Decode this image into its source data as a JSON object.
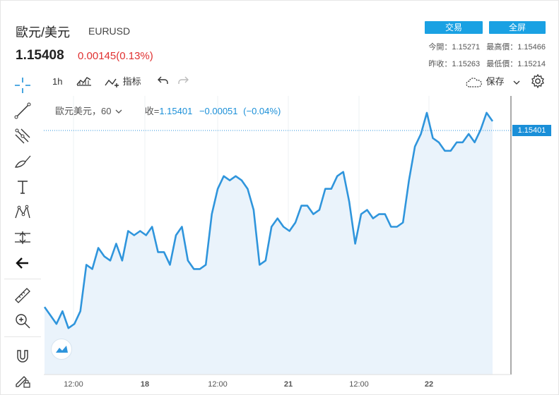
{
  "header": {
    "symbol_name": "歐元/美元",
    "symbol_code": "EURUSD",
    "price": "1.15408",
    "change": "0.00145(0.13%)",
    "trade_button": "交易",
    "fullscreen_button": "全屏",
    "stats": {
      "today_open_label": "今開：",
      "today_open": "1.15271",
      "high_label": "最高價：",
      "high": "1.15466",
      "prev_close_label": "昨收：",
      "prev_close": "1.15263",
      "low_label": "最低價：",
      "low": "1.15214"
    }
  },
  "toolbar": {
    "interval": "1h",
    "indicator_label": "指标",
    "save_label": "保存"
  },
  "legend": {
    "series": "歐元美元，60",
    "close_label": "收=",
    "close_value": "1.15401",
    "close_change": "−0.00051",
    "close_change_pct": "(−0.04%)"
  },
  "colors": {
    "line": "#2f95dc",
    "area": "#eaf3fb",
    "accent": "#1aa1e3",
    "negative": "#e03131"
  },
  "chart_data": {
    "type": "area",
    "x_ticks": [
      "12:00",
      "18",
      "12:00",
      "21",
      "12:00",
      "22"
    ],
    "y_last_label": "1.15401",
    "y": [
      1.1496,
      1.1494,
      1.1492,
      1.1495,
      1.1491,
      1.1492,
      1.1495,
      1.1506,
      1.1505,
      1.151,
      1.1508,
      1.1507,
      1.1511,
      1.1507,
      1.1514,
      1.1513,
      1.1514,
      1.1513,
      1.1515,
      1.1509,
      1.1509,
      1.1506,
      1.1513,
      1.1515,
      1.1507,
      1.1505,
      1.1505,
      1.1506,
      1.1518,
      1.1524,
      1.1527,
      1.1526,
      1.1527,
      1.1526,
      1.1524,
      1.1519,
      1.1506,
      1.1507,
      1.1515,
      1.1517,
      1.1515,
      1.1514,
      1.1516,
      1.152,
      1.152,
      1.1518,
      1.1519,
      1.1524,
      1.1524,
      1.1527,
      1.1528,
      1.1521,
      1.1511,
      1.1518,
      1.1519,
      1.1517,
      1.1518,
      1.1518,
      1.1515,
      1.1515,
      1.1516,
      1.1526,
      1.1534,
      1.1537,
      1.1542,
      1.1536,
      1.1535,
      1.1533,
      1.1533,
      1.1535,
      1.1535,
      1.1537,
      1.1535,
      1.1538,
      1.1542,
      1.154
    ],
    "grid": true,
    "ylim": [
      1.148,
      1.1546
    ]
  }
}
